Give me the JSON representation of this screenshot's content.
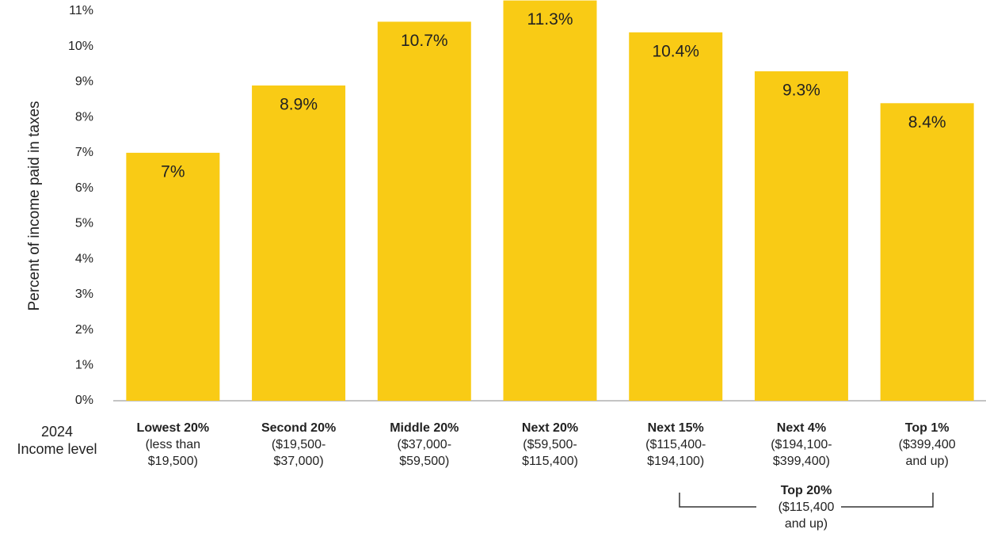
{
  "chart_data": {
    "type": "bar",
    "y_axis_label": "Percent of income paid in taxes",
    "x_axis_label": [
      "2024",
      "Income level"
    ],
    "categories": [
      "Lowest 20%",
      "Second 20%",
      "Middle 20%",
      "Next 20%",
      "Next 15%",
      "Next 4%",
      "Top 1%"
    ],
    "category_details": [
      [
        "(less than",
        "$19,500)"
      ],
      [
        "($19,500-",
        "$37,000)"
      ],
      [
        "($37,000-",
        "$59,500)"
      ],
      [
        "($59,500-",
        "$115,400)"
      ],
      [
        "($115,400-",
        "$194,100)"
      ],
      [
        "($194,100-",
        "$399,400)"
      ],
      [
        "($399,400",
        "and up)"
      ]
    ],
    "values": [
      7,
      8.9,
      10.7,
      11.3,
      10.4,
      9.3,
      8.4
    ],
    "value_labels": [
      "7%",
      "8.9%",
      "10.7%",
      "11.3%",
      "10.4%",
      "9.3%",
      "8.4%"
    ],
    "color": "#f9cb15",
    "ylim": [
      0,
      11
    ],
    "yticks": [
      {
        "value": 0,
        "label": "0%"
      },
      {
        "value": 1,
        "label": "1%"
      },
      {
        "value": 2,
        "label": "2%"
      },
      {
        "value": 3,
        "label": "3%"
      },
      {
        "value": 4,
        "label": "4%"
      },
      {
        "value": 5,
        "label": "5%"
      },
      {
        "value": 6,
        "label": "6%"
      },
      {
        "value": 7,
        "label": "7%"
      },
      {
        "value": 8,
        "label": "8%"
      },
      {
        "value": 9,
        "label": "9%"
      },
      {
        "value": 10,
        "label": "10%"
      },
      {
        "value": 11,
        "label": "11%"
      }
    ],
    "annotation": {
      "title": "Top 20%",
      "lines": [
        "($115,400",
        "and up)"
      ]
    }
  }
}
